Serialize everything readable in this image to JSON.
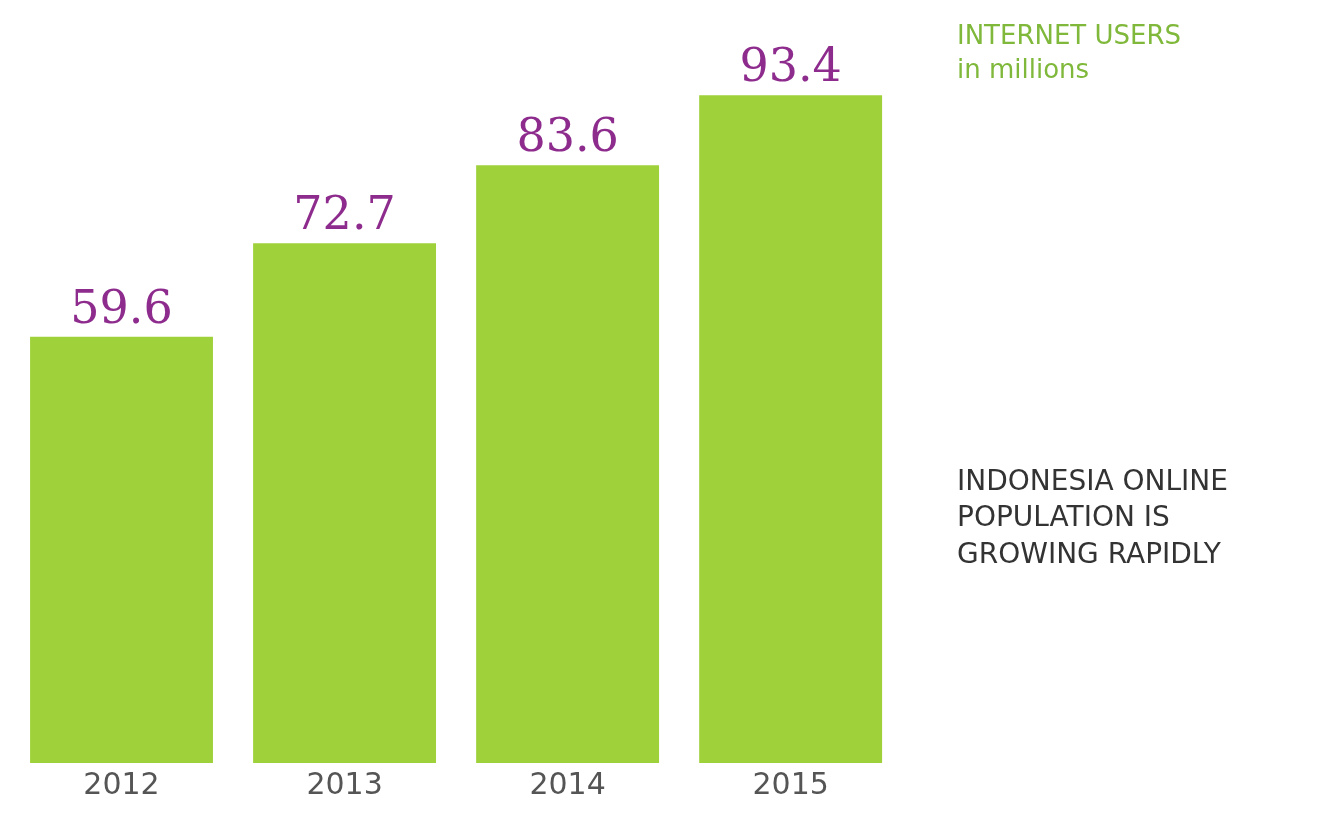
{
  "chart_data": {
    "type": "bar",
    "title": "INTERNET USERS",
    "subtitle": "in millions",
    "categories": [
      "2012",
      "2013",
      "2014",
      "2015"
    ],
    "values": [
      59.6,
      72.7,
      83.6,
      93.4
    ],
    "color": "#9fd13a",
    "data_labels": true,
    "annotations": [
      "INDONESIA ONLINE POPULATION IS GROWING RAPIDLY"
    ],
    "legend": false
  }
}
